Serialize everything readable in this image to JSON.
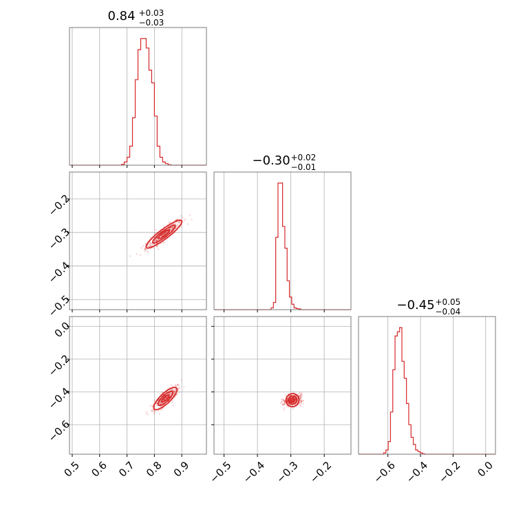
{
  "chart_data": {
    "type": "corner",
    "color": "#d62728",
    "grid": true,
    "parameters": [
      "p0",
      "p1",
      "p2"
    ],
    "ranges": [
      [
        0.49,
        0.99
      ],
      [
        -0.53,
        -0.12
      ],
      [
        -0.78,
        0.06
      ]
    ],
    "ticks": [
      {
        "values": [
          0.5,
          0.6,
          0.7,
          0.8,
          0.9
        ],
        "labels": [
          "0.5",
          "0.6",
          "0.7",
          "0.8",
          "0.9"
        ]
      },
      {
        "values": [
          -0.5,
          -0.4,
          -0.3,
          -0.2
        ],
        "labels": [
          "−0.5",
          "−0.4",
          "−0.3",
          "−0.2"
        ]
      },
      {
        "values": [
          -0.6,
          -0.4,
          -0.2,
          0.0
        ],
        "labels": [
          "−0.6",
          "−0.4",
          "−0.2",
          "0.0"
        ]
      }
    ],
    "titles": [
      {
        "value": "0.84",
        "plus": "+0.03",
        "minus": "−0.03"
      },
      {
        "value": "−0.30",
        "plus": "+0.02",
        "minus": "−0.01"
      },
      {
        "value": "−0.45",
        "plus": "+0.05",
        "minus": "−0.04"
      }
    ],
    "histograms": [
      {
        "bin_start": 0.49,
        "bin_width": 0.01,
        "counts": [
          0,
          0,
          0,
          0,
          0,
          0,
          0,
          0,
          0,
          0,
          0,
          0,
          0,
          0,
          0,
          0,
          0,
          0,
          0,
          0.5,
          2,
          5,
          12,
          30,
          54,
          73,
          80,
          80,
          74,
          60,
          52,
          31,
          12,
          5,
          2,
          1,
          0.3,
          0,
          0,
          0,
          0,
          0,
          0,
          0,
          0,
          0,
          0,
          0,
          0,
          0
        ]
      },
      {
        "bin_start": -0.53,
        "bin_width": 0.00684,
        "counts": [
          0,
          0,
          0,
          0,
          0,
          0,
          0,
          0,
          0,
          0,
          0,
          0,
          0,
          0,
          0,
          0,
          0,
          0,
          0,
          0,
          0,
          0,
          0,
          0,
          0,
          0.5,
          2,
          20,
          35,
          35,
          23,
          17,
          8,
          3.5,
          1.5,
          0.5,
          0.3,
          0.2,
          0,
          0,
          0,
          0,
          0,
          0,
          0,
          0,
          0,
          0,
          0,
          0,
          0,
          0,
          0,
          0,
          0,
          0,
          0,
          0,
          0,
          0
        ]
      },
      {
        "bin_start": -0.78,
        "bin_width": 0.014,
        "counts": [
          0,
          0,
          0,
          0,
          0,
          0,
          0,
          0,
          0,
          0,
          0,
          0.3,
          1,
          3,
          10,
          20,
          28,
          29,
          30,
          22,
          18,
          12,
          7,
          4,
          2.3,
          1,
          0.6,
          0.3,
          0.1,
          0,
          0,
          0,
          0,
          0,
          0,
          0,
          0,
          0,
          0,
          0,
          0,
          0,
          0,
          0,
          0,
          0,
          0,
          0,
          0,
          0,
          0,
          0,
          0,
          0,
          0,
          0,
          0,
          0,
          0,
          0
        ]
      }
    ],
    "scatter_2d": [
      {
        "x_param": 0,
        "y_param": 1,
        "center": [
          0.835,
          -0.305
        ],
        "slope": 0.62,
        "spread_main": 0.04,
        "spread_perp": 0.008
      },
      {
        "x_param": 0,
        "y_param": 2,
        "center": [
          0.84,
          -0.44
        ],
        "slope": 1.6,
        "spread_main": 0.04,
        "spread_perp": 0.012
      },
      {
        "x_param": 1,
        "y_param": 2,
        "center": [
          -0.295,
          -0.45
        ],
        "slope": 2.6,
        "spread_main": 0.018,
        "spread_perp": 0.012
      }
    ]
  }
}
